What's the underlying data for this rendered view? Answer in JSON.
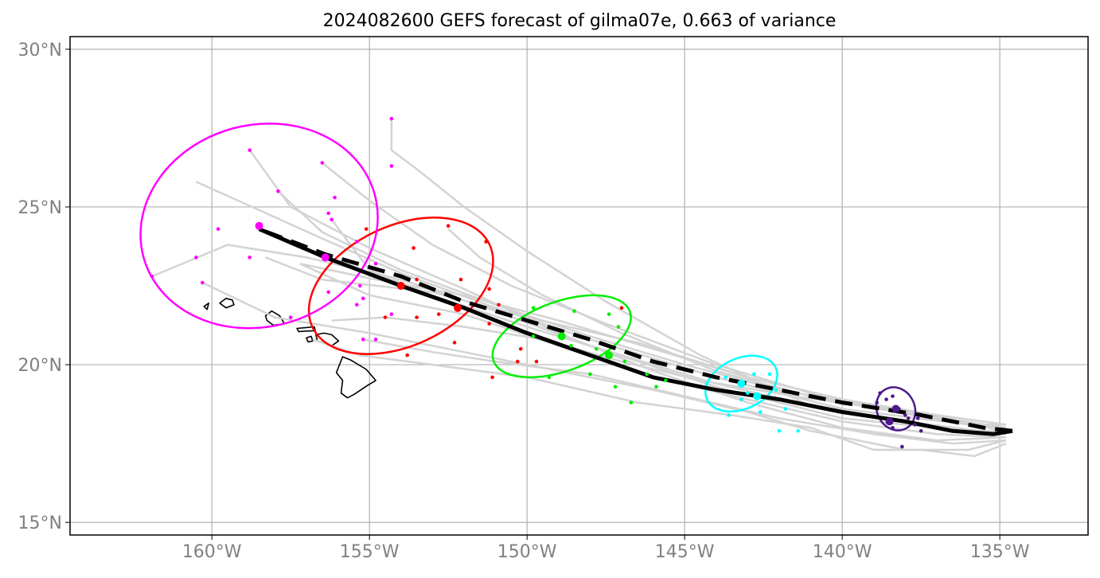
{
  "title": "2024082600 GEFS forecast of gilma07e, 0.663 of variance",
  "map": {
    "lon_range": [
      -164.5,
      -132.2
    ],
    "lat_range": [
      14.6,
      30.4
    ],
    "lat_ticks": [
      {
        "value": 30,
        "label": "30°N"
      },
      {
        "value": 25,
        "label": "25°N"
      },
      {
        "value": 20,
        "label": "20°N"
      },
      {
        "value": 15,
        "label": "15°N"
      }
    ],
    "lon_ticks": [
      {
        "value": -160,
        "label": "160°W"
      },
      {
        "value": -155,
        "label": "155°W"
      },
      {
        "value": -150,
        "label": "150°W"
      },
      {
        "value": -145,
        "label": "145°W"
      },
      {
        "value": -140,
        "label": "140°W"
      },
      {
        "value": -135,
        "label": "135°W"
      }
    ],
    "grid": true,
    "colors": {
      "ensemble": "#d3d3d3",
      "mean_track": "#000000",
      "grid": "#b0b0b0",
      "tick_text": "#808080",
      "coast": "#000000"
    },
    "islands": [
      {
        "name": "Kauai",
        "points": [
          [
            -159.75,
            21.95
          ],
          [
            -159.55,
            22.1
          ],
          [
            -159.35,
            22.05
          ],
          [
            -159.3,
            21.9
          ],
          [
            -159.55,
            21.8
          ]
        ]
      },
      {
        "name": "Niihau",
        "points": [
          [
            -160.25,
            21.85
          ],
          [
            -160.1,
            21.95
          ],
          [
            -160.15,
            21.75
          ]
        ]
      },
      {
        "name": "Oahu",
        "points": [
          [
            -158.3,
            21.55
          ],
          [
            -158.1,
            21.7
          ],
          [
            -157.85,
            21.55
          ],
          [
            -157.7,
            21.3
          ],
          [
            -158.05,
            21.25
          ],
          [
            -158.25,
            21.4
          ]
        ]
      },
      {
        "name": "Molokai",
        "points": [
          [
            -157.3,
            21.15
          ],
          [
            -156.75,
            21.2
          ],
          [
            -156.72,
            21.08
          ],
          [
            -157.25,
            21.05
          ]
        ]
      },
      {
        "name": "Lanai",
        "points": [
          [
            -157.0,
            20.85
          ],
          [
            -156.85,
            20.9
          ],
          [
            -156.8,
            20.75
          ],
          [
            -156.95,
            20.72
          ]
        ]
      },
      {
        "name": "Maui",
        "points": [
          [
            -156.7,
            20.95
          ],
          [
            -156.45,
            21.0
          ],
          [
            -156.2,
            20.95
          ],
          [
            -155.98,
            20.75
          ],
          [
            -156.2,
            20.6
          ],
          [
            -156.45,
            20.7
          ],
          [
            -156.65,
            20.75
          ]
        ]
      },
      {
        "name": "Hawaii",
        "points": [
          [
            -155.85,
            20.25
          ],
          [
            -155.6,
            20.15
          ],
          [
            -155.1,
            19.85
          ],
          [
            -154.8,
            19.5
          ],
          [
            -155.05,
            19.35
          ],
          [
            -155.5,
            19.05
          ],
          [
            -155.7,
            18.95
          ],
          [
            -155.9,
            19.1
          ],
          [
            -155.85,
            19.5
          ],
          [
            -156.05,
            19.75
          ]
        ]
      }
    ],
    "ensemble_tracks": [
      [
        [
          -134.8,
          18.1
        ],
        [
          -136,
          18.1
        ],
        [
          -140,
          18.6
        ],
        [
          -144,
          19.6
        ],
        [
          -148,
          20.8
        ],
        [
          -151,
          21.8
        ],
        [
          -154,
          22.9
        ],
        [
          -156.5,
          24.0
        ],
        [
          -158.5,
          24.9
        ],
        [
          -160.5,
          25.8
        ]
      ],
      [
        [
          -134.8,
          17.9
        ],
        [
          -136,
          17.9
        ],
        [
          -140,
          18.3
        ],
        [
          -144,
          19.3
        ],
        [
          -148,
          20.6
        ],
        [
          -151,
          21.7
        ],
        [
          -154,
          22.7
        ],
        [
          -157,
          23.4
        ],
        [
          -159.5,
          23.8
        ],
        [
          -161.9,
          22.8
        ]
      ],
      [
        [
          -134.8,
          18.0
        ],
        [
          -136,
          18.1
        ],
        [
          -140,
          18.8
        ],
        [
          -144,
          20.0
        ],
        [
          -147.5,
          21.3
        ],
        [
          -150.5,
          22.5
        ],
        [
          -153,
          23.8
        ],
        [
          -155,
          25.2
        ],
        [
          -156.5,
          26.4
        ]
      ],
      [
        [
          -134.8,
          17.8
        ],
        [
          -137,
          18.0
        ],
        [
          -141,
          18.7
        ],
        [
          -144.5,
          20.3
        ],
        [
          -147.5,
          22.0
        ],
        [
          -150,
          23.6
        ],
        [
          -152,
          25.0
        ],
        [
          -153.5,
          26.2
        ],
        [
          -154.3,
          26.8
        ],
        [
          -154.3,
          27.8
        ]
      ],
      [
        [
          -134.8,
          17.7
        ],
        [
          -137,
          17.6
        ],
        [
          -140,
          18.0
        ],
        [
          -143,
          18.8
        ],
        [
          -146,
          19.8
        ],
        [
          -149,
          21.0
        ],
        [
          -152,
          22.4
        ],
        [
          -155,
          23.7
        ],
        [
          -157.5,
          25.0
        ],
        [
          -158.8,
          26.8
        ]
      ],
      [
        [
          -134.8,
          17.6
        ],
        [
          -136,
          17.3
        ],
        [
          -138,
          17.3
        ],
        [
          -141,
          17.9
        ],
        [
          -143,
          18.5
        ],
        [
          -146,
          19.2
        ],
        [
          -149,
          19.8
        ],
        [
          -152,
          20.4
        ],
        [
          -155,
          21.0
        ],
        [
          -158,
          21.5
        ],
        [
          -160.3,
          22.6
        ]
      ],
      [
        [
          -134.8,
          17.5
        ],
        [
          -135.8,
          17.1
        ],
        [
          -137.5,
          17.3
        ],
        [
          -139,
          17.3
        ],
        [
          -141,
          18.0
        ],
        [
          -143.5,
          18.4
        ],
        [
          -146.5,
          18.8
        ],
        [
          -150,
          19.6
        ],
        [
          -153,
          20.0
        ],
        [
          -155.3,
          20.3
        ],
        [
          -156.8,
          20.8
        ]
      ],
      [
        [
          -134.8,
          17.9
        ],
        [
          -137,
          18.3
        ],
        [
          -140,
          18.9
        ],
        [
          -143,
          19.6
        ],
        [
          -146.5,
          20.7
        ],
        [
          -150,
          21.5
        ],
        [
          -153,
          22.3
        ],
        [
          -156.5,
          22.7
        ],
        [
          -158.3,
          23.4
        ]
      ],
      [
        [
          -134.8,
          18.0
        ],
        [
          -138,
          18.5
        ],
        [
          -142,
          19.2
        ],
        [
          -145,
          20.0
        ],
        [
          -148,
          20.9
        ],
        [
          -151,
          21.9
        ],
        [
          -154,
          23.0
        ],
        [
          -156.5,
          24.2
        ],
        [
          -157.9,
          25.5
        ]
      ],
      [
        [
          -134.8,
          17.8
        ],
        [
          -138,
          18.2
        ],
        [
          -141,
          18.7
        ],
        [
          -144,
          19.4
        ],
        [
          -147,
          20.3
        ],
        [
          -150,
          21.2
        ],
        [
          -153,
          22.2
        ],
        [
          -155,
          23.0
        ],
        [
          -156.2,
          24.6
        ]
      ],
      [
        [
          -134.8,
          17.7
        ],
        [
          -137,
          17.8
        ],
        [
          -140,
          18.2
        ],
        [
          -143,
          18.9
        ],
        [
          -146,
          19.6
        ],
        [
          -149,
          20.6
        ],
        [
          -152,
          21.6
        ],
        [
          -155,
          22.2
        ],
        [
          -157.2,
          23.2
        ]
      ],
      [
        [
          -134.8,
          17.9
        ],
        [
          -137.5,
          18.4
        ],
        [
          -141,
          19.0
        ],
        [
          -144,
          19.8
        ],
        [
          -147,
          21.0
        ],
        [
          -149.5,
          22.2
        ],
        [
          -151.5,
          23.4
        ],
        [
          -152.5,
          24.3
        ]
      ],
      [
        [
          -134.8,
          18.0
        ],
        [
          -138,
          18.5
        ],
        [
          -141.5,
          19.0
        ],
        [
          -144.5,
          19.5
        ],
        [
          -147,
          20.1
        ],
        [
          -149.5,
          20.8
        ],
        [
          -152,
          21.2
        ],
        [
          -154.5,
          21.5
        ],
        [
          -156.2,
          21.4
        ]
      ],
      [
        [
          -134.8,
          17.6
        ],
        [
          -136.5,
          17.5
        ],
        [
          -139,
          17.8
        ],
        [
          -142,
          18.3
        ],
        [
          -145,
          19.0
        ],
        [
          -148,
          19.7
        ],
        [
          -151,
          20.1
        ],
        [
          -153,
          20.4
        ],
        [
          -155.2,
          20.8
        ]
      ],
      [
        [
          -134.8,
          18.1
        ],
        [
          -137,
          18.4
        ],
        [
          -140,
          18.9
        ],
        [
          -143,
          19.6
        ],
        [
          -146,
          20.5
        ],
        [
          -149,
          21.4
        ],
        [
          -152,
          22.2
        ],
        [
          -154.8,
          22.7
        ],
        [
          -157.2,
          23.2
        ]
      ]
    ],
    "mean_track": {
      "points": [
        [
          -134.6,
          17.9
        ],
        [
          -135.2,
          17.8
        ],
        [
          -136.5,
          17.9
        ],
        [
          -138,
          18.2
        ],
        [
          -140,
          18.5
        ],
        [
          -142,
          18.9
        ],
        [
          -144,
          19.2
        ],
        [
          -146,
          19.6
        ],
        [
          -148,
          20.3
        ],
        [
          -150,
          21.0
        ],
        [
          -152,
          21.8
        ],
        [
          -154,
          22.5
        ],
        [
          -156.4,
          23.4
        ],
        [
          -158.5,
          24.3
        ]
      ]
    },
    "dashed_track": {
      "points": [
        [
          -134.6,
          17.9
        ],
        [
          -135.5,
          18.0
        ],
        [
          -137.5,
          18.4
        ],
        [
          -140,
          18.8
        ],
        [
          -142,
          19.2
        ],
        [
          -144,
          19.6
        ],
        [
          -146,
          20.1
        ],
        [
          -148,
          20.8
        ],
        [
          -150,
          21.4
        ],
        [
          -152,
          22.0
        ],
        [
          -154,
          22.8
        ],
        [
          -156.4,
          23.5
        ],
        [
          -158.5,
          24.3
        ]
      ]
    },
    "lead_groups": [
      {
        "color": "#4b1a8a",
        "center": [
          -138.3,
          18.6
        ],
        "mean_pt": [
          -138.5,
          18.2
        ],
        "ellipse": {
          "rx": 0.6,
          "ry": 0.7,
          "angle": -25
        },
        "points": [
          [
            -138.8,
            19.1
          ],
          [
            -138.4,
            19.0
          ],
          [
            -138.9,
            18.8
          ],
          [
            -138.2,
            18.6
          ],
          [
            -138.0,
            18.4
          ],
          [
            -137.9,
            18.3
          ],
          [
            -137.7,
            18.1
          ],
          [
            -138.4,
            18.0
          ],
          [
            -137.5,
            17.9
          ],
          [
            -138.1,
            17.4
          ],
          [
            -138.6,
            18.9
          ],
          [
            -137.6,
            18.3
          ]
        ]
      },
      {
        "color": "#00ffff",
        "center": [
          -143.2,
          19.4
        ],
        "mean_pt": [
          -142.7,
          19.0
        ],
        "ellipse": {
          "rx": 1.2,
          "ry": 0.8,
          "angle": -25
        },
        "points": [
          [
            -144.3,
            19.4
          ],
          [
            -143.7,
            19.6
          ],
          [
            -142.8,
            19.7
          ],
          [
            -142.3,
            19.7
          ],
          [
            -142.1,
            19.2
          ],
          [
            -141.8,
            18.6
          ],
          [
            -142.0,
            17.9
          ],
          [
            -141.4,
            17.9
          ],
          [
            -143.2,
            18.9
          ],
          [
            -143.6,
            18.4
          ],
          [
            -142.6,
            18.5
          ],
          [
            -143.0,
            19.1
          ]
        ]
      },
      {
        "color": "#00ee00",
        "center": [
          -148.9,
          20.9
        ],
        "mean_pt": [
          -147.4,
          20.3
        ],
        "ellipse": {
          "rx": 2.3,
          "ry": 1.1,
          "angle": -20
        },
        "points": [
          [
            -149.8,
            21.8
          ],
          [
            -148.5,
            21.7
          ],
          [
            -147.4,
            21.6
          ],
          [
            -147.1,
            21.2
          ],
          [
            -149.8,
            20.9
          ],
          [
            -148.6,
            20.6
          ],
          [
            -147.8,
            20.5
          ],
          [
            -146.9,
            20.1
          ],
          [
            -146.2,
            19.7
          ],
          [
            -145.6,
            19.5
          ],
          [
            -148.0,
            19.7
          ],
          [
            -147.2,
            19.3
          ],
          [
            -145.9,
            19.3
          ],
          [
            -146.7,
            18.8
          ],
          [
            -149.3,
            19.6
          ]
        ]
      },
      {
        "color": "#ff0000",
        "center": [
          -154.0,
          22.5
        ],
        "mean_pt": [
          -152.2,
          21.8
        ],
        "ellipse": {
          "rx": 3.1,
          "ry": 1.9,
          "angle": -25
        },
        "points": [
          [
            -155.1,
            24.3
          ],
          [
            -152.5,
            24.4
          ],
          [
            -151.3,
            23.9
          ],
          [
            -153.6,
            23.7
          ],
          [
            -153.5,
            22.7
          ],
          [
            -152.1,
            22.7
          ],
          [
            -151.2,
            22.4
          ],
          [
            -150.9,
            21.9
          ],
          [
            -151.2,
            21.3
          ],
          [
            -152.8,
            21.6
          ],
          [
            -153.5,
            21.5
          ],
          [
            -153.8,
            20.3
          ],
          [
            -152.3,
            20.7
          ],
          [
            -150.2,
            20.5
          ],
          [
            -150.3,
            20.1
          ],
          [
            -151.1,
            19.6
          ],
          [
            -149.7,
            20.1
          ],
          [
            -147.0,
            21.8
          ],
          [
            -154.5,
            21.5
          ]
        ]
      },
      {
        "color": "#ff00ff",
        "center": [
          -158.5,
          24.4
        ],
        "mean_pt": [
          -156.4,
          23.4
        ],
        "ellipse": {
          "rx": 3.8,
          "ry": 3.2,
          "angle": -15
        },
        "points": [
          [
            -158.8,
            26.8
          ],
          [
            -156.5,
            26.4
          ],
          [
            -154.3,
            26.3
          ],
          [
            -154.3,
            27.8
          ],
          [
            -157.9,
            25.5
          ],
          [
            -156.1,
            25.3
          ],
          [
            -156.3,
            24.8
          ],
          [
            -156.2,
            24.6
          ],
          [
            -155.4,
            23.9
          ],
          [
            -154.8,
            23.2
          ],
          [
            -155.3,
            22.5
          ],
          [
            -156.3,
            22.3
          ],
          [
            -155.2,
            22.1
          ],
          [
            -154.3,
            21.6
          ],
          [
            -155.2,
            20.8
          ],
          [
            -154.8,
            20.8
          ],
          [
            -157.5,
            21.5
          ],
          [
            -158.8,
            23.4
          ],
          [
            -159.8,
            24.3
          ],
          [
            -160.3,
            22.6
          ],
          [
            -160.5,
            23.4
          ],
          [
            -161.9,
            22.8
          ],
          [
            -155.4,
            21.9
          ]
        ]
      }
    ]
  }
}
